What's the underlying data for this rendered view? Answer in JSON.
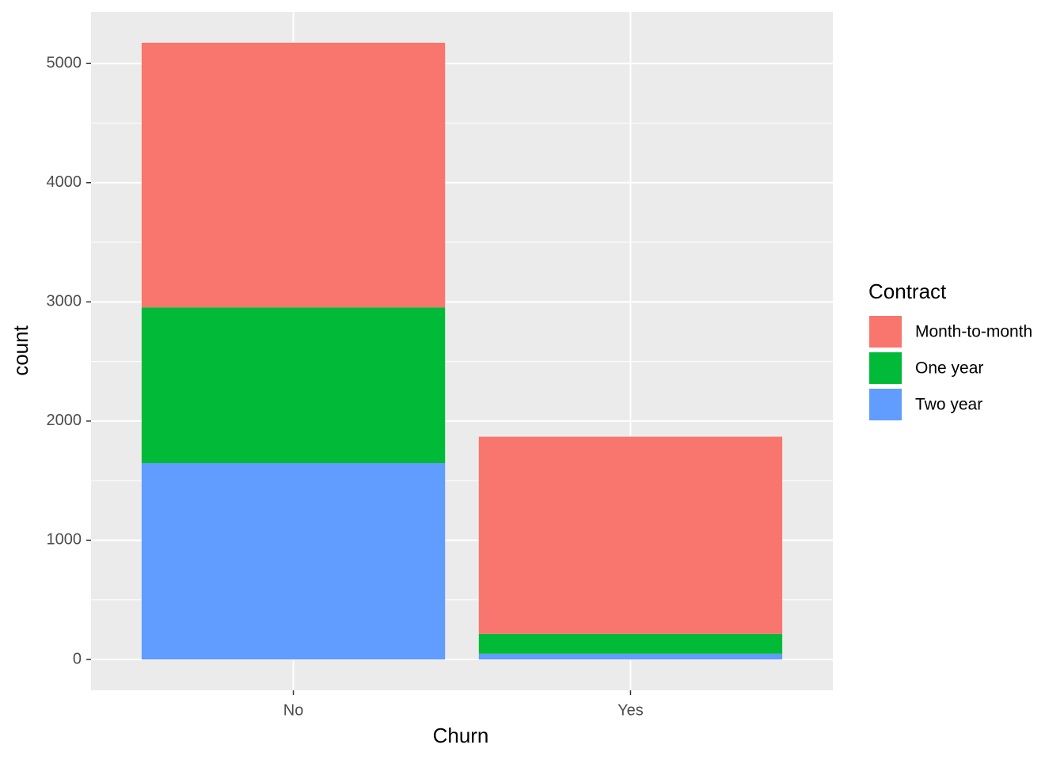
{
  "chart_data": {
    "type": "stacked_bar",
    "x_label": "Churn",
    "y_label": "count",
    "legend_title": "Contract",
    "categories": [
      "No",
      "Yes"
    ],
    "series": [
      {
        "name": "Month-to-month",
        "color": "#f8766d",
        "values": [
          2220,
          1655
        ]
      },
      {
        "name": "One year",
        "color": "#00ba38",
        "values": [
          1307,
          166
        ]
      },
      {
        "name": "Two year",
        "color": "#619cff",
        "values": [
          1647,
          48
        ]
      }
    ],
    "ylim": [
      -259,
      5433
    ],
    "yticks": [
      0,
      1000,
      2000,
      3000,
      4000,
      5000
    ],
    "grid": true,
    "legend": "right"
  }
}
